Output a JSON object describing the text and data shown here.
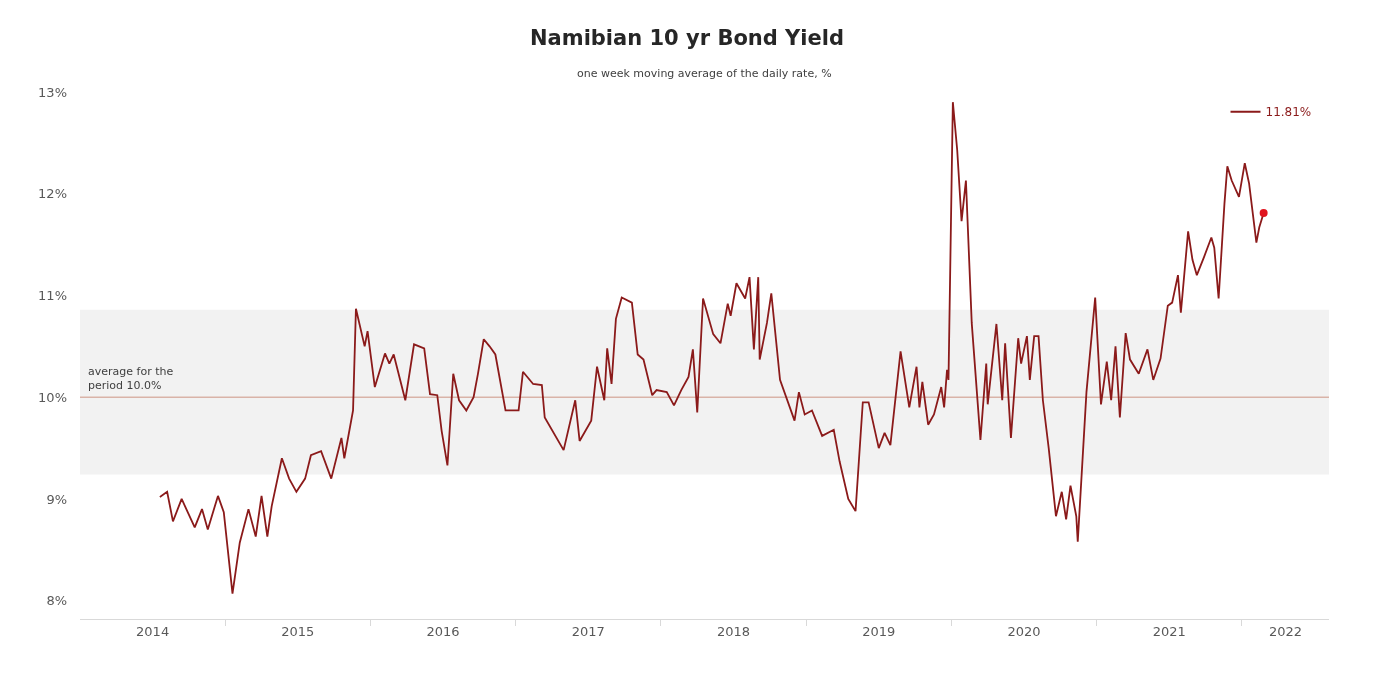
{
  "chart_data": {
    "type": "line",
    "title": "Namibian 10 yr Bond Yield",
    "subtitle": "one week moving average of the daily rate, %",
    "x": [
      2014.55,
      2014.6,
      2014.64,
      2014.7,
      2014.79,
      2014.84,
      2014.88,
      2014.95,
      2014.99,
      2015.05,
      2015.1,
      2015.16,
      2015.21,
      2015.25,
      2015.29,
      2015.32,
      2015.39,
      2015.44,
      2015.49,
      2015.55,
      2015.59,
      2015.66,
      2015.73,
      2015.8,
      2015.82,
      2015.88,
      2015.9,
      2015.96,
      2015.98,
      2016.03,
      2016.1,
      2016.13,
      2016.16,
      2016.24,
      2016.3,
      2016.37,
      2016.41,
      2016.46,
      2016.49,
      2016.53,
      2016.57,
      2016.61,
      2016.66,
      2016.71,
      2016.74,
      2016.78,
      2016.82,
      2016.86,
      2016.93,
      2017.02,
      2017.05,
      2017.12,
      2017.18,
      2017.2,
      2017.33,
      2017.41,
      2017.44,
      2017.52,
      2017.56,
      2017.61,
      2017.63,
      2017.66,
      2017.69,
      2017.73,
      2017.8,
      2017.84,
      2017.88,
      2017.94,
      2017.97,
      2018.04,
      2018.09,
      2018.14,
      2018.19,
      2018.22,
      2018.25,
      2018.29,
      2018.36,
      2018.41,
      2018.46,
      2018.48,
      2018.52,
      2018.58,
      2018.61,
      2018.64,
      2018.67,
      2018.68,
      2018.73,
      2018.76,
      2018.82,
      2018.92,
      2018.95,
      2018.99,
      2019.04,
      2019.11,
      2019.19,
      2019.23,
      2019.29,
      2019.34,
      2019.39,
      2019.43,
      2019.5,
      2019.54,
      2019.58,
      2019.65,
      2019.71,
      2019.76,
      2019.78,
      2019.8,
      2019.84,
      2019.88,
      2019.93,
      2019.95,
      2019.97,
      2019.98,
      2020.01,
      2020.04,
      2020.07,
      2020.1,
      2020.14,
      2020.2,
      2020.24,
      2020.25,
      2020.31,
      2020.35,
      2020.37,
      2020.41,
      2020.46,
      2020.48,
      2020.52,
      2020.54,
      2020.57,
      2020.6,
      2020.63,
      2020.67,
      2020.72,
      2020.76,
      2020.79,
      2020.82,
      2020.86,
      2020.87,
      2020.93,
      2020.99,
      2021.03,
      2021.07,
      2021.1,
      2021.13,
      2021.16,
      2021.2,
      2021.23,
      2021.29,
      2021.35,
      2021.39,
      2021.44,
      2021.49,
      2021.52,
      2021.56,
      2021.58,
      2021.63,
      2021.66,
      2021.69,
      2021.74,
      2021.79,
      2021.81,
      2021.84,
      2021.88,
      2021.9,
      2021.93,
      2021.98,
      2022.02,
      2022.05,
      2022.1,
      2022.12,
      2022.15
    ],
    "series": [
      {
        "name": "11.81%",
        "color": "#8b1a1a",
        "values": [
          9.02,
          9.07,
          8.78,
          9.0,
          8.72,
          8.9,
          8.7,
          9.03,
          8.87,
          8.07,
          8.57,
          8.9,
          8.63,
          9.03,
          8.63,
          8.93,
          9.4,
          9.2,
          9.07,
          9.2,
          9.43,
          9.47,
          9.2,
          9.6,
          9.4,
          9.87,
          10.87,
          10.5,
          10.65,
          10.1,
          10.43,
          10.33,
          10.42,
          9.97,
          10.52,
          10.48,
          10.03,
          10.02,
          9.67,
          9.33,
          10.23,
          9.97,
          9.87,
          10.0,
          10.23,
          10.57,
          10.5,
          10.42,
          9.87,
          9.87,
          10.25,
          10.13,
          10.12,
          9.8,
          9.48,
          9.97,
          9.57,
          9.77,
          10.3,
          9.97,
          10.48,
          10.13,
          10.77,
          10.98,
          10.93,
          10.42,
          10.37,
          10.02,
          10.07,
          10.05,
          9.92,
          10.07,
          10.2,
          10.47,
          9.85,
          10.97,
          10.62,
          10.53,
          10.92,
          10.8,
          11.12,
          10.97,
          11.18,
          10.47,
          11.18,
          10.37,
          10.73,
          11.02,
          10.17,
          9.77,
          10.05,
          9.83,
          9.87,
          9.62,
          9.68,
          9.37,
          9.0,
          8.88,
          9.95,
          9.95,
          9.5,
          9.65,
          9.53,
          10.45,
          9.9,
          10.3,
          9.9,
          10.15,
          9.73,
          9.83,
          10.1,
          9.9,
          10.27,
          10.17,
          12.9,
          12.43,
          11.73,
          12.13,
          10.73,
          9.58,
          10.33,
          9.93,
          10.72,
          9.97,
          10.53,
          9.6,
          10.58,
          10.33,
          10.6,
          10.17,
          10.6,
          10.6,
          9.97,
          9.5,
          8.83,
          9.07,
          8.8,
          9.13,
          8.83,
          8.58,
          10.05,
          10.98,
          9.93,
          10.35,
          9.97,
          10.5,
          9.8,
          10.63,
          10.37,
          10.23,
          10.47,
          10.17,
          10.38,
          10.9,
          10.93,
          11.2,
          10.83,
          11.63,
          11.35,
          11.2,
          11.38,
          11.57,
          11.47,
          10.97,
          11.9,
          12.27,
          12.13,
          11.97,
          12.3,
          12.1,
          11.52,
          11.67,
          11.81
        ]
      },
      {
        "type": "scatter",
        "marker": "circle",
        "color": "#e0141e",
        "x": [
          2022.15
        ],
        "values": [
          11.81
        ]
      }
    ],
    "xlim": [
      2014.0,
      2022.6
    ],
    "xticks": [
      {
        "value": 2014.5,
        "label": "2014"
      },
      {
        "value": 2015.5,
        "label": "2015"
      },
      {
        "value": 2016.5,
        "label": "2016"
      },
      {
        "value": 2017.5,
        "label": "2017"
      },
      {
        "value": 2018.5,
        "label": "2018"
      },
      {
        "value": 2019.5,
        "label": "2019"
      },
      {
        "value": 2020.5,
        "label": "2020"
      },
      {
        "value": 2021.5,
        "label": "2021"
      },
      {
        "value": 2022.3,
        "label": "2022"
      },
      {
        "value": 2015,
        "label": null
      },
      {
        "value": 2016,
        "label": null
      },
      {
        "value": 2017,
        "label": null
      },
      {
        "value": 2018,
        "label": null
      },
      {
        "value": 2019,
        "label": null
      },
      {
        "value": 2020,
        "label": null
      },
      {
        "value": 2021,
        "label": null
      },
      {
        "value": 2022,
        "label": null
      }
    ],
    "ylim": [
      7.82,
      13
    ],
    "yticks": [
      {
        "value": 8,
        "label": "8%"
      },
      {
        "value": 9,
        "label": "9%"
      },
      {
        "value": 10,
        "label": "10%"
      },
      {
        "value": 11,
        "label": "11%"
      },
      {
        "value": 12,
        "label": "12%"
      },
      {
        "value": 13,
        "label": "13%"
      }
    ],
    "bands": [
      {
        "axis": "y",
        "from": 9.24,
        "to": 10.86,
        "color": "#f2f2f2"
      }
    ],
    "ref_lines": [
      {
        "axis": "y",
        "value": 10.0,
        "label": "average for the\nperiod 10.0%",
        "color": "#d9b3a8",
        "line_style": "solid"
      }
    ],
    "grid": false,
    "legend": "top right",
    "marker": "none",
    "line_style": "solid"
  }
}
